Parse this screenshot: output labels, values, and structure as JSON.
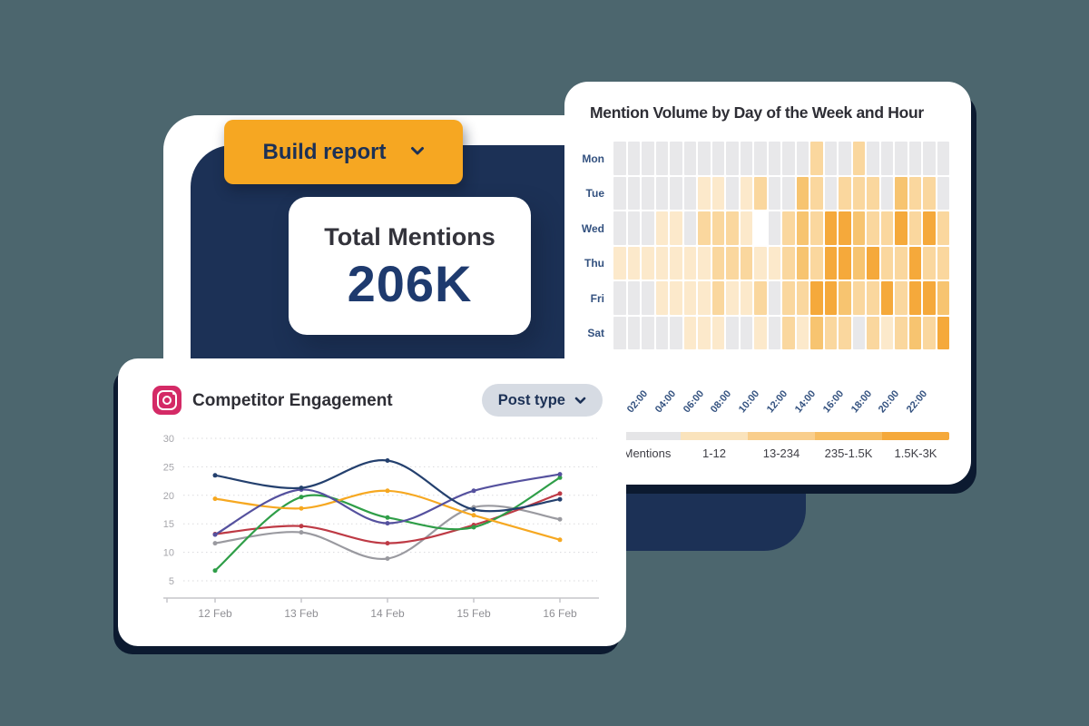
{
  "colors": {
    "page_background": "#4C666E",
    "stage_panel": "#FFFFFF",
    "navy_backdrop": "#1C3156",
    "card_shadow": "#0C1A30",
    "accent_orange": "#F6A722",
    "accent_navy_text": "#1C3156",
    "kpi_value": "#1E3A6E",
    "heading_text": "#2E2E35",
    "axis_label_blue": "#33517F",
    "pill_background": "#D6DBE3",
    "instagram_pink": "#D42A66"
  },
  "build_button": {
    "label": "Build report",
    "icon": "chevron-down-icon"
  },
  "total_mentions_card": {
    "title": "Total Mentions",
    "value": "206K"
  },
  "competitor_card": {
    "icon": "instagram-icon",
    "title": "Competitor Engagement",
    "filter_label": "Post type",
    "filter_icon": "chevron-down-icon"
  },
  "chart_data": [
    {
      "type": "heatmap",
      "title": "Mention Volume by Day of the Week and Hour",
      "row_labels": [
        "Mon",
        "Tue",
        "Wed",
        "Thu",
        "Fri",
        "Sat"
      ],
      "col_labels": [
        "02:00",
        "04:00",
        "06:00",
        "08:00",
        "10:00",
        "12:00",
        "14:00",
        "16:00",
        "18:00",
        "20:00",
        "22:00"
      ],
      "palette": {
        "0": "#E8E8EA",
        "1": "#FCE9CB",
        "2": "#FAD79E",
        "3": "#F7C470",
        "4": "#F5A93B",
        "9": "#FFFFFF"
      },
      "matrix": [
        [
          0,
          0,
          0,
          0,
          0,
          0,
          0,
          0,
          0,
          0,
          0,
          0,
          0,
          0,
          2,
          0,
          0,
          2,
          0,
          0,
          0,
          0,
          0,
          0
        ],
        [
          0,
          0,
          0,
          0,
          0,
          0,
          1,
          1,
          0,
          1,
          2,
          0,
          0,
          3,
          2,
          0,
          2,
          2,
          2,
          0,
          3,
          2,
          2,
          0
        ],
        [
          0,
          0,
          0,
          1,
          1,
          0,
          2,
          2,
          2,
          1,
          9,
          0,
          2,
          3,
          2,
          4,
          4,
          3,
          2,
          2,
          4,
          2,
          4,
          2
        ],
        [
          1,
          1,
          1,
          1,
          1,
          1,
          1,
          2,
          2,
          2,
          1,
          1,
          2,
          3,
          2,
          4,
          4,
          3,
          4,
          2,
          2,
          4,
          2,
          2
        ],
        [
          0,
          0,
          0,
          1,
          1,
          1,
          1,
          2,
          1,
          1,
          2,
          0,
          2,
          2,
          4,
          4,
          3,
          2,
          2,
          4,
          2,
          4,
          4,
          3
        ],
        [
          0,
          0,
          0,
          0,
          0,
          1,
          1,
          1,
          0,
          0,
          1,
          0,
          2,
          1,
          3,
          2,
          2,
          0,
          2,
          1,
          2,
          3,
          2,
          4
        ]
      ],
      "legend": {
        "labels": [
          "Mentions",
          "1-12",
          "13-234",
          "235-1.5K",
          "1.5K-3K"
        ],
        "colors": [
          "#E5E5E7",
          "#FAE3BC",
          "#F9CE8C",
          "#F7BD62",
          "#F5A93B"
        ]
      }
    },
    {
      "type": "line",
      "title": "Competitor Engagement",
      "x": [
        "12 Feb",
        "13 Feb",
        "14 Feb",
        "15 Feb",
        "16 Feb"
      ],
      "yticks": [
        30,
        25,
        20,
        15,
        10,
        5
      ],
      "ylim": [
        5,
        30
      ],
      "grid": "dotted-horizontal",
      "legend_position": "none",
      "series": [
        {
          "name": "gray",
          "color": "#9A9AA0",
          "values": [
            11.6,
            13.5,
            8.9,
            17.9,
            15.8
          ]
        },
        {
          "name": "red",
          "color": "#BE3A45",
          "values": [
            13.2,
            14.6,
            11.6,
            14.8,
            20.3
          ]
        },
        {
          "name": "green",
          "color": "#2F9E48",
          "values": [
            6.8,
            19.7,
            16.1,
            14.4,
            23.1
          ]
        },
        {
          "name": "orange",
          "color": "#F6A821",
          "values": [
            19.4,
            17.7,
            20.8,
            16.5,
            12.2
          ]
        },
        {
          "name": "purple",
          "color": "#55519E",
          "values": [
            13.1,
            21.0,
            15.1,
            20.8,
            23.7
          ]
        },
        {
          "name": "navy",
          "color": "#24406E",
          "values": [
            23.5,
            21.3,
            26.1,
            17.5,
            19.3
          ]
        }
      ]
    }
  ]
}
